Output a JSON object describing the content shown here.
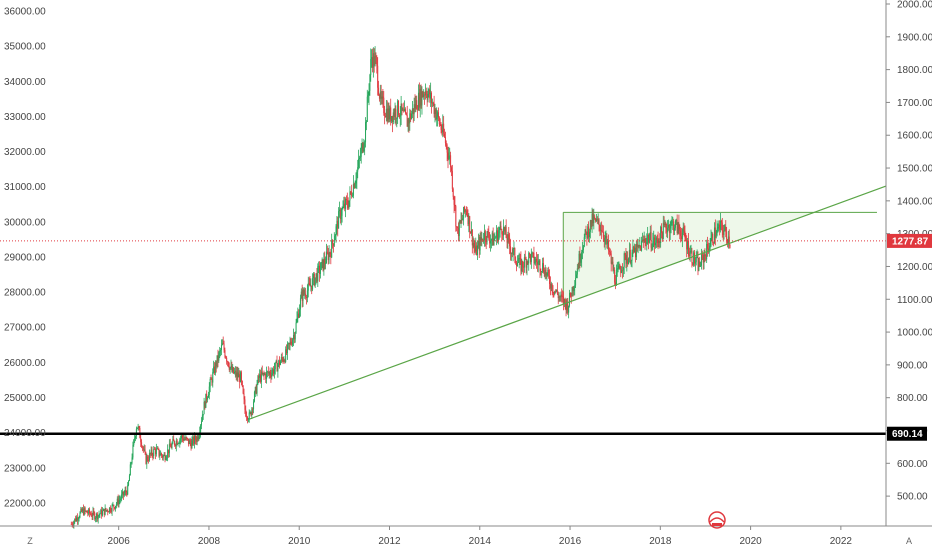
{
  "colors": {
    "up": "#26a65b",
    "down": "#e0383e",
    "grid": "#eeeeee",
    "axis": "#444444",
    "trendline": "#5aa547",
    "triangle_fill": "#eef8ea",
    "support": "#000000",
    "current_price": "#e0383e"
  },
  "corner_labels": {
    "left": "Z",
    "right": "A"
  },
  "chart_data": {
    "type": "candlestick",
    "title": "",
    "left_axis": {
      "ticks": [
        "22000.00",
        "23000.00",
        "24000.00",
        "25000.00",
        "26000.00",
        "27000.00",
        "28000.00",
        "29000.00",
        "30000.00",
        "31000.00",
        "32000.00",
        "33000.00",
        "34000.00",
        "35000.00",
        "36000.00"
      ],
      "range": [
        21400,
        36200
      ]
    },
    "right_axis": {
      "ticks": [
        "500.00",
        "600.00",
        "700.00",
        "800.00",
        "900.00",
        "1000.00",
        "1100.00",
        "1200.00",
        "1300.00",
        "1400.00",
        "1500.00",
        "1600.00",
        "1700.00",
        "1800.00",
        "1900.00",
        "2000.00"
      ],
      "range": [
        415,
        2000
      ]
    },
    "x_axis": {
      "ticks": [
        "2006",
        "2008",
        "2010",
        "2012",
        "2014",
        "2016",
        "2018",
        "2020",
        "2022"
      ],
      "range": [
        2004.7,
        2023.0
      ]
    },
    "grid": false,
    "current_price": {
      "value": 1277.87,
      "label": "1277.87"
    },
    "support_level": {
      "value": 690.14,
      "label": "690.14"
    },
    "trendline": {
      "start": [
        2008.9,
        735
      ],
      "end": [
        2023.0,
        1445
      ]
    },
    "triangle": {
      "top": 1365,
      "left_x": 2015.85,
      "bottom_y": 1062,
      "right_x": 2022.8
    },
    "price_path": [
      [
        2004.95,
        415
      ],
      [
        2005.2,
        455
      ],
      [
        2005.5,
        440
      ],
      [
        2005.9,
        470
      ],
      [
        2006.2,
        520
      ],
      [
        2006.3,
        630
      ],
      [
        2006.4,
        720
      ],
      [
        2006.5,
        670
      ],
      [
        2006.6,
        610
      ],
      [
        2006.8,
        640
      ],
      [
        2007.0,
        620
      ],
      [
        2007.2,
        660
      ],
      [
        2007.4,
        680
      ],
      [
        2007.6,
        660
      ],
      [
        2007.75,
        680
      ],
      [
        2007.9,
        780
      ],
      [
        2008.15,
        900
      ],
      [
        2008.3,
        960
      ],
      [
        2008.5,
        880
      ],
      [
        2008.7,
        860
      ],
      [
        2008.8,
        760
      ],
      [
        2008.9,
        740
      ],
      [
        2009.1,
        860
      ],
      [
        2009.4,
        880
      ],
      [
        2009.7,
        930
      ],
      [
        2009.9,
        1000
      ],
      [
        2010.05,
        1110
      ],
      [
        2010.2,
        1130
      ],
      [
        2010.5,
        1200
      ],
      [
        2010.7,
        1250
      ],
      [
        2010.9,
        1360
      ],
      [
        2011.1,
        1400
      ],
      [
        2011.3,
        1500
      ],
      [
        2011.45,
        1600
      ],
      [
        2011.6,
        1840
      ],
      [
        2011.7,
        1820
      ],
      [
        2011.8,
        1700
      ],
      [
        2012.0,
        1660
      ],
      [
        2012.2,
        1680
      ],
      [
        2012.4,
        1640
      ],
      [
        2012.6,
        1700
      ],
      [
        2012.8,
        1740
      ],
      [
        2012.95,
        1700
      ],
      [
        2013.2,
        1600
      ],
      [
        2013.35,
        1520
      ],
      [
        2013.5,
        1300
      ],
      [
        2013.7,
        1380
      ],
      [
        2013.9,
        1240
      ],
      [
        2014.1,
        1300
      ],
      [
        2014.3,
        1280
      ],
      [
        2014.5,
        1320
      ],
      [
        2014.7,
        1250
      ],
      [
        2014.9,
        1200
      ],
      [
        2015.1,
        1230
      ],
      [
        2015.4,
        1200
      ],
      [
        2015.6,
        1140
      ],
      [
        2015.8,
        1100
      ],
      [
        2015.95,
        1080
      ],
      [
        2016.1,
        1160
      ],
      [
        2016.3,
        1280
      ],
      [
        2016.5,
        1340
      ],
      [
        2016.7,
        1320
      ],
      [
        2016.85,
        1250
      ],
      [
        2017.0,
        1160
      ],
      [
        2017.2,
        1220
      ],
      [
        2017.5,
        1250
      ],
      [
        2017.7,
        1290
      ],
      [
        2017.9,
        1270
      ],
      [
        2018.1,
        1320
      ],
      [
        2018.3,
        1330
      ],
      [
        2018.5,
        1300
      ],
      [
        2018.7,
        1230
      ],
      [
        2018.85,
        1200
      ],
      [
        2019.0,
        1240
      ],
      [
        2019.2,
        1300
      ],
      [
        2019.35,
        1320
      ],
      [
        2019.5,
        1290
      ],
      [
        2019.55,
        1278
      ]
    ]
  }
}
